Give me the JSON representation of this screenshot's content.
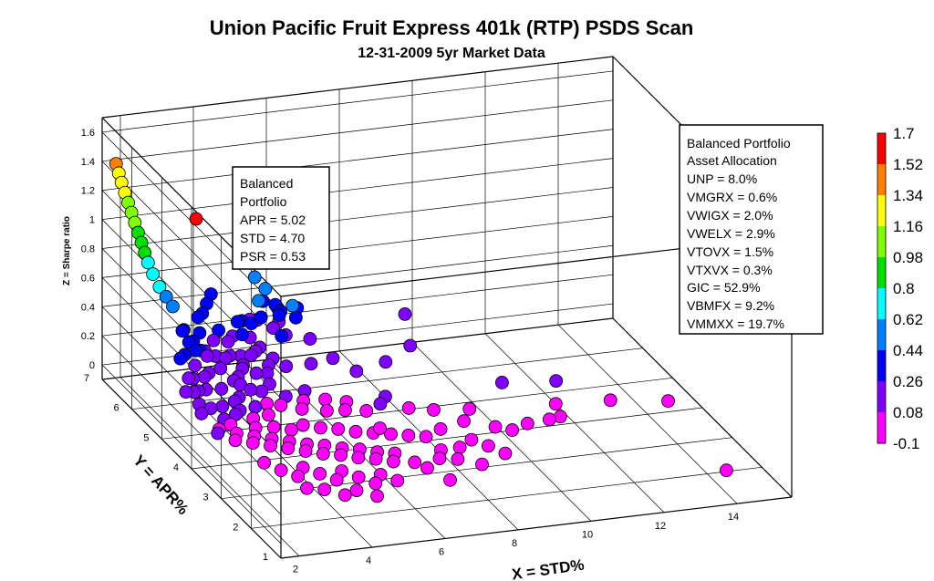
{
  "chart_data": {
    "type": "scatter",
    "title": "Union Pacific Fruit Express 401k (RTP) PSDS Scan",
    "subtitle": "12-31-2009 5yr Market Data",
    "xlabel": "X = STD%",
    "ylabel": "Y = APR%",
    "zlabel": "Z = Sharpe ratio",
    "x_ticks": [
      "2",
      "4",
      "6",
      "8",
      "10",
      "12",
      "14"
    ],
    "y_ticks": [
      "1",
      "2",
      "3",
      "4",
      "5",
      "6",
      "7"
    ],
    "z_ticks": [
      "0",
      "0.2",
      "0.4",
      "0.6",
      "0.8",
      "1",
      "1.2",
      "1.4",
      "1.6"
    ],
    "xlim": [
      1.5,
      15.5
    ],
    "ylim": [
      1,
      7
    ],
    "zlim": [
      -0.1,
      1.7
    ],
    "grid": true,
    "colorbar": {
      "labels": [
        "1.7",
        "1.52",
        "1.34",
        "1.16",
        "0.98",
        "0.8",
        "0.62",
        "0.44",
        "0.26",
        "0.08",
        "-0.1"
      ],
      "colors": [
        "#ff0000",
        "#ff8000",
        "#ffff00",
        "#80ff00",
        "#00e000",
        "#00ffff",
        "#0080ff",
        "#0000ff",
        "#8000ff",
        "#ff00ff"
      ]
    },
    "highlight": {
      "x": 4.7,
      "y": 5.02,
      "z": 1.06
    },
    "points": [
      {
        "x": 14.2,
        "y": 1.6,
        "z": 0.0
      },
      {
        "x": 14.4,
        "y": 3.8,
        "z": 0.02
      },
      {
        "x": 12.9,
        "y": 3.9,
        "z": 0.05
      },
      {
        "x": 11.9,
        "y": 4.5,
        "z": 0.09
      },
      {
        "x": 11.4,
        "y": 3.9,
        "z": 0.07
      },
      {
        "x": 11.2,
        "y": 3.5,
        "z": 0.07
      },
      {
        "x": 10.9,
        "y": 3.5,
        "z": 0.06
      },
      {
        "x": 9.8,
        "y": 3.4,
        "z": 0.04
      },
      {
        "x": 10.3,
        "y": 3.5,
        "z": 0.05
      },
      {
        "x": 10.5,
        "y": 4.6,
        "z": 0.1
      },
      {
        "x": 8.9,
        "y": 3.1,
        "z": 0.02
      },
      {
        "x": 8.6,
        "y": 3.3,
        "z": 0.03
      },
      {
        "x": 8.0,
        "y": 3.6,
        "z": 0.06
      },
      {
        "x": 7.6,
        "y": 3.1,
        "z": 0.03
      },
      {
        "x": 7.2,
        "y": 2.3,
        "z": 0.0
      },
      {
        "x": 7.4,
        "y": 2.9,
        "z": 0.02
      },
      {
        "x": 6.9,
        "y": 2.7,
        "z": 0.01
      },
      {
        "x": 6.5,
        "y": 3.8,
        "z": 0.07
      },
      {
        "x": 6.0,
        "y": 5.5,
        "z": 0.18
      },
      {
        "x": 7.0,
        "y": 4.4,
        "z": 0.1
      },
      {
        "x": 9.8,
        "y": 7.0,
        "z": 0.1
      },
      {
        "x": 6.3,
        "y": 7.0,
        "z": 0.25
      },
      {
        "x": 6.6,
        "y": 6.7,
        "z": 0.3
      },
      {
        "x": 6.1,
        "y": 6.7,
        "z": 0.22
      },
      {
        "x": 6.4,
        "y": 6.5,
        "z": 0.28
      },
      {
        "x": 7.2,
        "y": 6.8,
        "z": 0.75
      },
      {
        "x": 5.6,
        "y": 6.9,
        "z": 0.5
      },
      {
        "x": 5.4,
        "y": 6.3,
        "z": 0.55
      },
      {
        "x": 5.9,
        "y": 6.0,
        "z": 0.48
      },
      {
        "x": 5.5,
        "y": 6.5,
        "z": 0.42
      },
      {
        "x": 5.3,
        "y": 6.4,
        "z": 0.45
      },
      {
        "x": 5.2,
        "y": 6.2,
        "z": 0.38
      },
      {
        "x": 5.7,
        "y": 6.2,
        "z": 0.38
      },
      {
        "x": 5.9,
        "y": 6.4,
        "z": 0.36
      },
      {
        "x": 6.0,
        "y": 6.7,
        "z": 0.34
      },
      {
        "x": 4.4,
        "y": 6.9,
        "z": 0.42
      },
      {
        "x": 4.8,
        "y": 6.5,
        "z": 0.3
      },
      {
        "x": 4.6,
        "y": 6.1,
        "z": 0.3
      },
      {
        "x": 5.0,
        "y": 6.6,
        "z": 0.28
      },
      {
        "x": 5.1,
        "y": 6.4,
        "z": 0.3
      },
      {
        "x": 5.3,
        "y": 6.7,
        "z": 0.26
      },
      {
        "x": 5.5,
        "y": 6.7,
        "z": 0.25
      },
      {
        "x": 5.7,
        "y": 6.4,
        "z": 0.25
      },
      {
        "x": 5.6,
        "y": 6.0,
        "z": 0.28
      },
      {
        "x": 5.8,
        "y": 6.1,
        "z": 0.26
      },
      {
        "x": 4.9,
        "y": 6.2,
        "z": 0.25
      },
      {
        "x": 5.0,
        "y": 6.0,
        "z": 0.22
      },
      {
        "x": 4.8,
        "y": 5.9,
        "z": 0.22
      },
      {
        "x": 4.6,
        "y": 5.8,
        "z": 0.22
      },
      {
        "x": 4.4,
        "y": 5.9,
        "z": 0.2
      },
      {
        "x": 4.2,
        "y": 5.6,
        "z": 0.18
      },
      {
        "x": 4.5,
        "y": 5.5,
        "z": 0.16
      },
      {
        "x": 4.8,
        "y": 5.5,
        "z": 0.15
      },
      {
        "x": 5.0,
        "y": 5.7,
        "z": 0.16
      },
      {
        "x": 5.2,
        "y": 5.8,
        "z": 0.18
      },
      {
        "x": 5.4,
        "y": 5.6,
        "z": 0.16
      },
      {
        "x": 4.7,
        "y": 5.3,
        "z": 0.12
      },
      {
        "x": 4.4,
        "y": 5.2,
        "z": 0.1
      },
      {
        "x": 4.1,
        "y": 5.2,
        "z": 0.12
      },
      {
        "x": 4.0,
        "y": 5.5,
        "z": 0.15
      },
      {
        "x": 3.8,
        "y": 5.4,
        "z": 0.15
      },
      {
        "x": 3.6,
        "y": 5.6,
        "z": 0.2
      },
      {
        "x": 3.4,
        "y": 5.8,
        "z": 0.25
      },
      {
        "x": 3.3,
        "y": 5.9,
        "z": 0.27
      },
      {
        "x": 3.5,
        "y": 6.0,
        "z": 0.24
      },
      {
        "x": 3.7,
        "y": 5.9,
        "z": 0.22
      },
      {
        "x": 3.9,
        "y": 5.8,
        "z": 0.22
      },
      {
        "x": 4.1,
        "y": 5.9,
        "z": 0.21
      },
      {
        "x": 4.3,
        "y": 6.2,
        "z": 0.24
      },
      {
        "x": 4.5,
        "y": 6.3,
        "z": 0.25
      },
      {
        "x": 4.2,
        "y": 6.4,
        "z": 0.28
      },
      {
        "x": 3.9,
        "y": 6.2,
        "z": 0.26
      },
      {
        "x": 3.6,
        "y": 6.3,
        "z": 0.3
      },
      {
        "x": 3.8,
        "y": 6.6,
        "z": 0.34
      },
      {
        "x": 4.0,
        "y": 6.7,
        "z": 0.34
      },
      {
        "x": 4.2,
        "y": 6.8,
        "z": 0.38
      },
      {
        "x": 3.7,
        "y": 5.1,
        "z": 0.1
      },
      {
        "x": 3.5,
        "y": 5.0,
        "z": 0.1
      },
      {
        "x": 3.3,
        "y": 5.2,
        "z": 0.15
      },
      {
        "x": 3.2,
        "y": 5.5,
        "z": 0.2
      },
      {
        "x": 3.0,
        "y": 5.4,
        "z": 0.2
      },
      {
        "x": 2.9,
        "y": 5.6,
        "z": 0.24
      },
      {
        "x": 2.8,
        "y": 5.1,
        "z": 0.18
      },
      {
        "x": 2.6,
        "y": 5.3,
        "z": 0.22
      },
      {
        "x": 2.5,
        "y": 5.0,
        "z": 0.2
      },
      {
        "x": 2.4,
        "y": 5.2,
        "z": 0.25
      },
      {
        "x": 2.3,
        "y": 4.9,
        "z": 0.22
      },
      {
        "x": 2.2,
        "y": 4.6,
        "z": 0.2
      },
      {
        "x": 2.1,
        "y": 4.4,
        "z": 0.18
      },
      {
        "x": 2.0,
        "y": 4.8,
        "z": 0.25
      },
      {
        "x": 2.6,
        "y": 4.7,
        "z": 0.14
      },
      {
        "x": 2.8,
        "y": 4.5,
        "z": 0.1
      },
      {
        "x": 3.0,
        "y": 4.8,
        "z": 0.12
      },
      {
        "x": 3.2,
        "y": 4.6,
        "z": 0.1
      },
      {
        "x": 3.4,
        "y": 4.7,
        "z": 0.1
      },
      {
        "x": 3.6,
        "y": 4.5,
        "z": 0.08
      },
      {
        "x": 3.9,
        "y": 4.8,
        "z": 0.09
      },
      {
        "x": 4.1,
        "y": 4.6,
        "z": 0.07
      },
      {
        "x": 4.3,
        "y": 4.9,
        "z": 0.08
      },
      {
        "x": 4.6,
        "y": 4.8,
        "z": 0.08
      },
      {
        "x": 4.9,
        "y": 5.0,
        "z": 0.09
      },
      {
        "x": 5.1,
        "y": 4.7,
        "z": 0.06
      },
      {
        "x": 5.3,
        "y": 4.9,
        "z": 0.07
      },
      {
        "x": 5.5,
        "y": 5.1,
        "z": 0.09
      },
      {
        "x": 5.7,
        "y": 4.6,
        "z": 0.05
      },
      {
        "x": 5.9,
        "y": 4.9,
        "z": 0.06
      },
      {
        "x": 6.2,
        "y": 4.6,
        "z": 0.04
      },
      {
        "x": 6.4,
        "y": 4.8,
        "z": 0.05
      },
      {
        "x": 6.7,
        "y": 4.5,
        "z": 0.04
      },
      {
        "x": 2.3,
        "y": 4.1,
        "z": 0.1
      },
      {
        "x": 2.5,
        "y": 4.3,
        "z": 0.08
      },
      {
        "x": 2.7,
        "y": 4.0,
        "z": 0.06
      },
      {
        "x": 2.9,
        "y": 4.2,
        "z": 0.06
      },
      {
        "x": 3.1,
        "y": 3.9,
        "z": 0.05
      },
      {
        "x": 3.3,
        "y": 4.1,
        "z": 0.05
      },
      {
        "x": 3.5,
        "y": 3.8,
        "z": 0.04
      },
      {
        "x": 3.7,
        "y": 4.0,
        "z": 0.04
      },
      {
        "x": 3.9,
        "y": 3.7,
        "z": 0.03
      },
      {
        "x": 4.1,
        "y": 3.9,
        "z": 0.03
      },
      {
        "x": 4.3,
        "y": 3.6,
        "z": 0.02
      },
      {
        "x": 4.5,
        "y": 3.8,
        "z": 0.02
      },
      {
        "x": 4.7,
        "y": 3.5,
        "z": 0.01
      },
      {
        "x": 4.9,
        "y": 3.7,
        "z": 0.02
      },
      {
        "x": 5.1,
        "y": 3.4,
        "z": 0.01
      },
      {
        "x": 5.3,
        "y": 3.6,
        "z": 0.01
      },
      {
        "x": 5.5,
        "y": 3.3,
        "z": 0.0
      },
      {
        "x": 5.7,
        "y": 3.5,
        "z": 0.01
      },
      {
        "x": 5.9,
        "y": 3.2,
        "z": 0.0
      },
      {
        "x": 6.1,
        "y": 3.4,
        "z": 0.0
      },
      {
        "x": 6.3,
        "y": 3.1,
        "z": -0.01
      },
      {
        "x": 6.5,
        "y": 3.3,
        "z": 0.0
      },
      {
        "x": 6.8,
        "y": 3.0,
        "z": -0.01
      },
      {
        "x": 3.0,
        "y": 3.4,
        "z": 0.02
      },
      {
        "x": 3.3,
        "y": 3.2,
        "z": 0.0
      },
      {
        "x": 3.6,
        "y": 3.0,
        "z": -0.01
      },
      {
        "x": 3.9,
        "y": 3.2,
        "z": 0.0
      },
      {
        "x": 4.2,
        "y": 3.0,
        "z": -0.01
      },
      {
        "x": 4.5,
        "y": 2.8,
        "z": -0.02
      },
      {
        "x": 4.8,
        "y": 3.0,
        "z": -0.01
      },
      {
        "x": 5.1,
        "y": 2.8,
        "z": -0.02
      },
      {
        "x": 5.4,
        "y": 2.6,
        "z": -0.03
      },
      {
        "x": 5.7,
        "y": 2.8,
        "z": -0.02
      },
      {
        "x": 6.0,
        "y": 2.6,
        "z": -0.03
      },
      {
        "x": 4.0,
        "y": 2.6,
        "z": -0.03
      },
      {
        "x": 4.4,
        "y": 2.4,
        "z": -0.04
      },
      {
        "x": 4.8,
        "y": 2.5,
        "z": -0.04
      },
      {
        "x": 5.2,
        "y": 2.3,
        "z": -0.05
      },
      {
        "x": 3.6,
        "y": 2.7,
        "z": -0.03
      },
      {
        "x": 2.9,
        "y": 4.4,
        "z": 0.08
      },
      {
        "x": 3.5,
        "y": 4.3,
        "z": 0.06
      },
      {
        "x": 4.0,
        "y": 4.3,
        "z": 0.05
      },
      {
        "x": 4.4,
        "y": 4.2,
        "z": 0.04
      },
      {
        "x": 4.8,
        "y": 4.3,
        "z": 0.04
      },
      {
        "x": 5.2,
        "y": 4.2,
        "z": 0.03
      },
      {
        "x": 5.6,
        "y": 4.1,
        "z": 0.03
      },
      {
        "x": 6.0,
        "y": 4.0,
        "z": 0.02
      },
      {
        "x": 6.4,
        "y": 3.9,
        "z": 0.02
      },
      {
        "x": 6.8,
        "y": 3.8,
        "z": 0.02
      },
      {
        "x": 7.2,
        "y": 3.7,
        "z": 0.02
      },
      {
        "x": 7.6,
        "y": 3.6,
        "z": 0.02
      },
      {
        "x": 8.2,
        "y": 3.2,
        "z": 0.01
      },
      {
        "x": 7.9,
        "y": 2.9,
        "z": 0.0
      },
      {
        "x": 8.4,
        "y": 2.7,
        "z": -0.01
      },
      {
        "x": 9.2,
        "y": 2.9,
        "z": 0.0
      },
      {
        "x": 9.5,
        "y": 3.6,
        "z": 0.03
      },
      {
        "x": 8.8,
        "y": 3.8,
        "z": 0.05
      },
      {
        "x": 9.2,
        "y": 4.1,
        "z": 0.06
      },
      {
        "x": 8.3,
        "y": 4.2,
        "z": 0.06
      },
      {
        "x": 7.7,
        "y": 4.3,
        "z": 0.07
      },
      {
        "x": 7.3,
        "y": 4.6,
        "z": 0.1
      },
      {
        "x": 7.8,
        "y": 5.2,
        "z": 0.2
      },
      {
        "x": 8.8,
        "y": 5.6,
        "z": 0.2
      },
      {
        "x": 7.0,
        "y": 5.2,
        "z": 0.16
      },
      {
        "x": 6.6,
        "y": 5.5,
        "z": 0.2
      },
      {
        "x": 6.3,
        "y": 5.9,
        "z": 0.26
      },
      {
        "x": 3.9,
        "y": 5.3,
        "z": 0.14
      },
      {
        "x": 4.3,
        "y": 5.7,
        "z": 0.18
      },
      {
        "x": 2.7,
        "y": 6.1,
        "z": 0.55
      },
      {
        "x": 2.6,
        "y": 6.2,
        "z": 0.6
      },
      {
        "x": 2.5,
        "y": 6.3,
        "z": 0.65
      },
      {
        "x": 2.4,
        "y": 6.4,
        "z": 0.72
      },
      {
        "x": 2.35,
        "y": 6.5,
        "z": 0.78
      },
      {
        "x": 2.3,
        "y": 6.55,
        "z": 0.84
      },
      {
        "x": 2.25,
        "y": 6.6,
        "z": 0.9
      },
      {
        "x": 2.2,
        "y": 6.65,
        "z": 0.96
      },
      {
        "x": 2.15,
        "y": 6.7,
        "z": 1.02
      },
      {
        "x": 2.1,
        "y": 6.75,
        "z": 1.08
      },
      {
        "x": 2.05,
        "y": 6.8,
        "z": 1.14
      },
      {
        "x": 2.0,
        "y": 6.85,
        "z": 1.2
      },
      {
        "x": 1.95,
        "y": 6.9,
        "z": 1.26
      },
      {
        "x": 1.9,
        "y": 6.93,
        "z": 1.32
      },
      {
        "x": 1.85,
        "y": 6.96,
        "z": 1.38
      },
      {
        "x": 2.8,
        "y": 5.9,
        "z": 0.42
      },
      {
        "x": 2.9,
        "y": 5.8,
        "z": 0.36
      },
      {
        "x": 3.0,
        "y": 5.7,
        "z": 0.32
      },
      {
        "x": 3.1,
        "y": 5.9,
        "z": 0.34
      },
      {
        "x": 3.0,
        "y": 6.1,
        "z": 0.38
      },
      {
        "x": 2.7,
        "y": 5.7,
        "z": 0.3
      },
      {
        "x": 2.5,
        "y": 5.6,
        "z": 0.3
      }
    ]
  }
}
